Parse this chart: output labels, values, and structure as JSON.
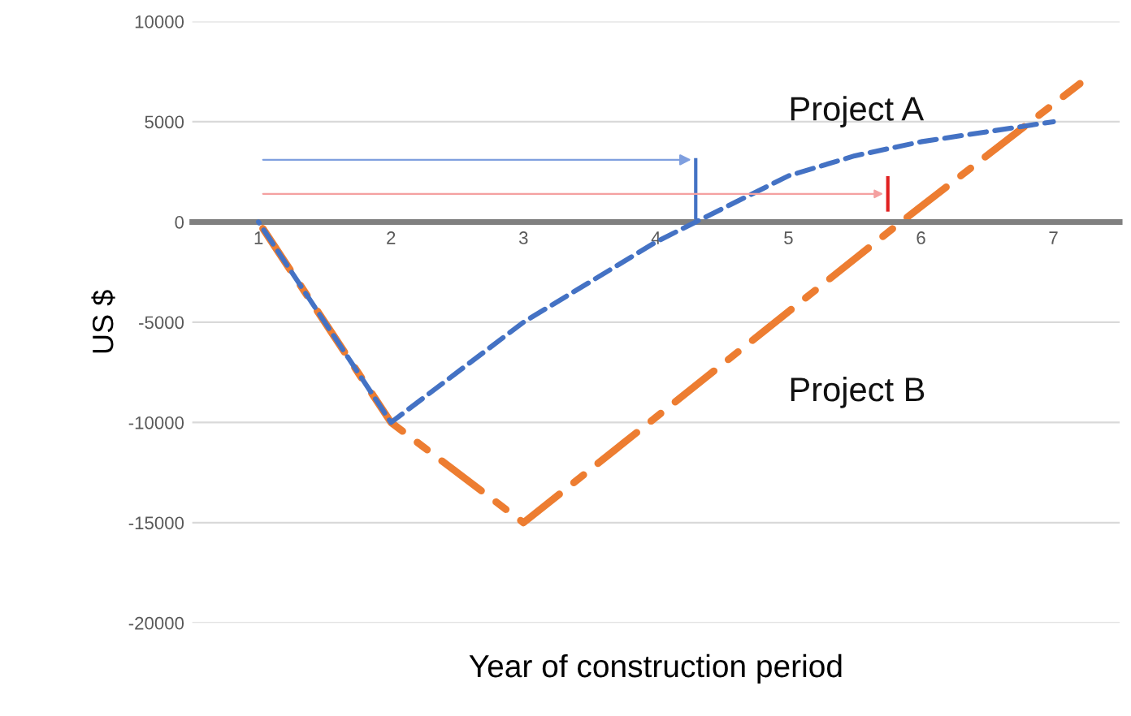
{
  "chart_data": {
    "type": "line",
    "xlabel": "Year of construction period",
    "ylabel": "US $",
    "xlim": [
      0.5,
      7.5
    ],
    "xticks": [
      1,
      2,
      3,
      4,
      5,
      6,
      7
    ],
    "ylim": [
      -20000,
      10000
    ],
    "yticks": [
      -20000,
      -15000,
      -10000,
      -5000,
      0,
      5000,
      10000
    ],
    "grid": "y",
    "legend": false,
    "series": [
      {
        "name": "Project A",
        "color": "#4472c4",
        "line_style": "dashed",
        "x": [
          1,
          2,
          3,
          4,
          4.3,
          5,
          5.5,
          6,
          6.5,
          7
        ],
        "values": [
          0,
          -10000,
          -5000,
          -1000,
          0,
          2300,
          3300,
          4000,
          4500,
          5000
        ]
      },
      {
        "name": "Project B",
        "color": "#ed7d31",
        "line_style": "dashdot",
        "x": [
          1,
          2,
          3,
          5.85,
          7.2
        ],
        "values": [
          0,
          -10000,
          -15000,
          0,
          6900
        ]
      }
    ]
  }
}
